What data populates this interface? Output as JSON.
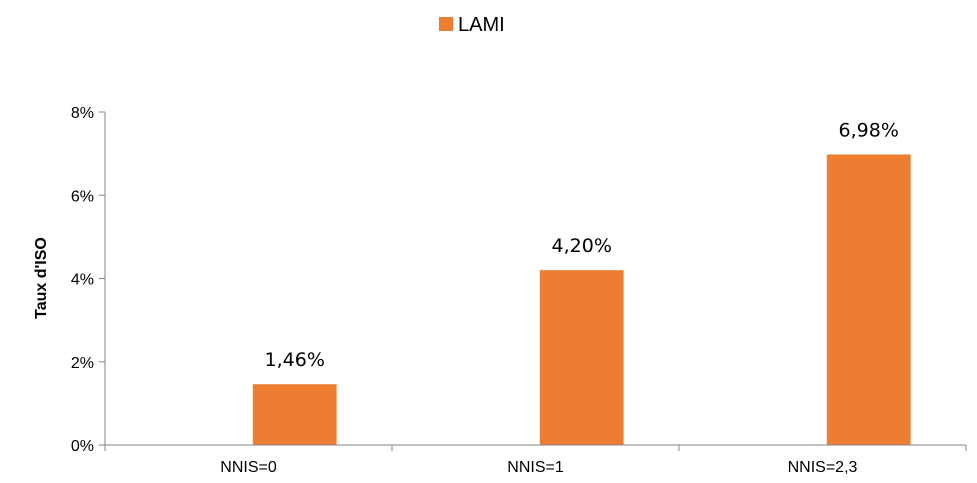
{
  "chart_data": {
    "type": "bar",
    "categories": [
      "NNIS=0",
      "NNIS=1",
      "NNIS=2,3"
    ],
    "series": [
      {
        "name": "LAMI",
        "values": [
          1.46,
          4.2,
          6.98
        ],
        "color": "#ED7D31"
      }
    ],
    "data_labels": [
      "1,46%",
      "4,20%",
      "6,98%"
    ],
    "ylabel": "Taux d'ISO",
    "ylim": [
      0,
      8
    ],
    "yticks": [
      0,
      2,
      4,
      6,
      8
    ],
    "ytick_labels": [
      "0%",
      "2%",
      "4%",
      "6%",
      "8%"
    ],
    "grid": false,
    "legend_position": "top-center"
  }
}
